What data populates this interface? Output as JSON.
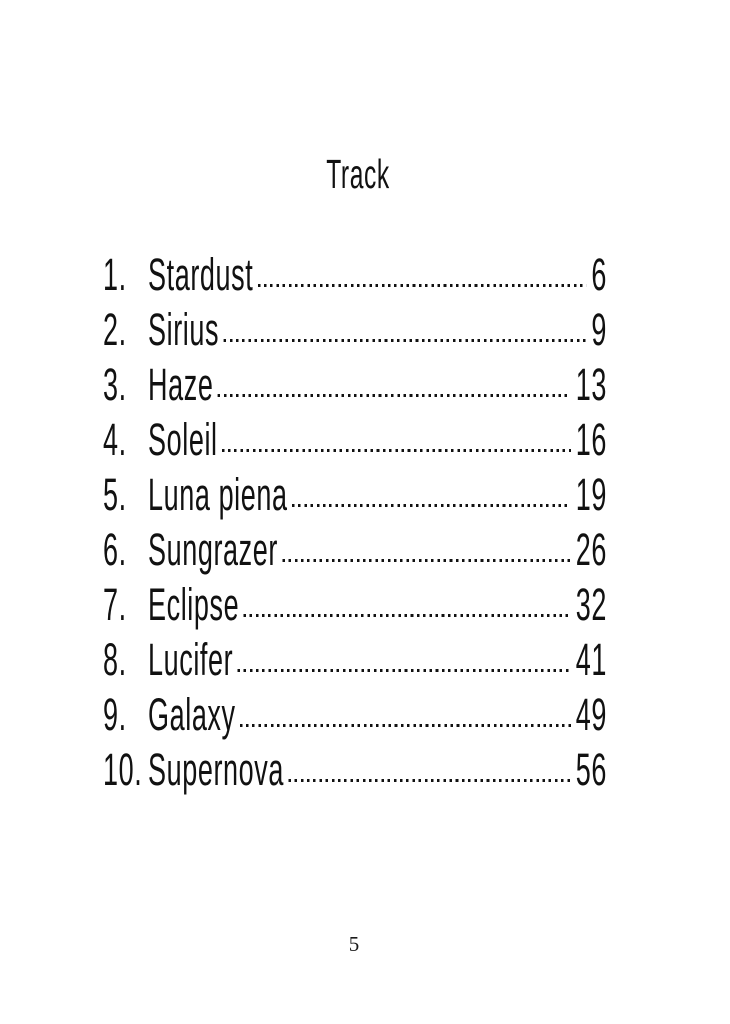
{
  "page": {
    "title": "Track",
    "footer_page_number": "5",
    "text_color": "#111111",
    "background_color": "#ffffff"
  },
  "toc": {
    "entries": [
      {
        "num": "1.",
        "title": "Stardust",
        "page": "6"
      },
      {
        "num": "2.",
        "title": "Sirius",
        "page": "9"
      },
      {
        "num": "3.",
        "title": "Haze",
        "page": "13"
      },
      {
        "num": "4.",
        "title": "Soleil",
        "page": "16"
      },
      {
        "num": "5.",
        "title": "Luna piena",
        "page": "19"
      },
      {
        "num": "6.",
        "title": "Sungrazer",
        "page": "26"
      },
      {
        "num": "7.",
        "title": "Eclipse",
        "page": "32"
      },
      {
        "num": "8.",
        "title": "Lucifer",
        "page": "41"
      },
      {
        "num": "9.",
        "title": "Galaxy",
        "page": "49"
      },
      {
        "num": "10.",
        "title": "Supernova",
        "page": "56"
      }
    ]
  }
}
